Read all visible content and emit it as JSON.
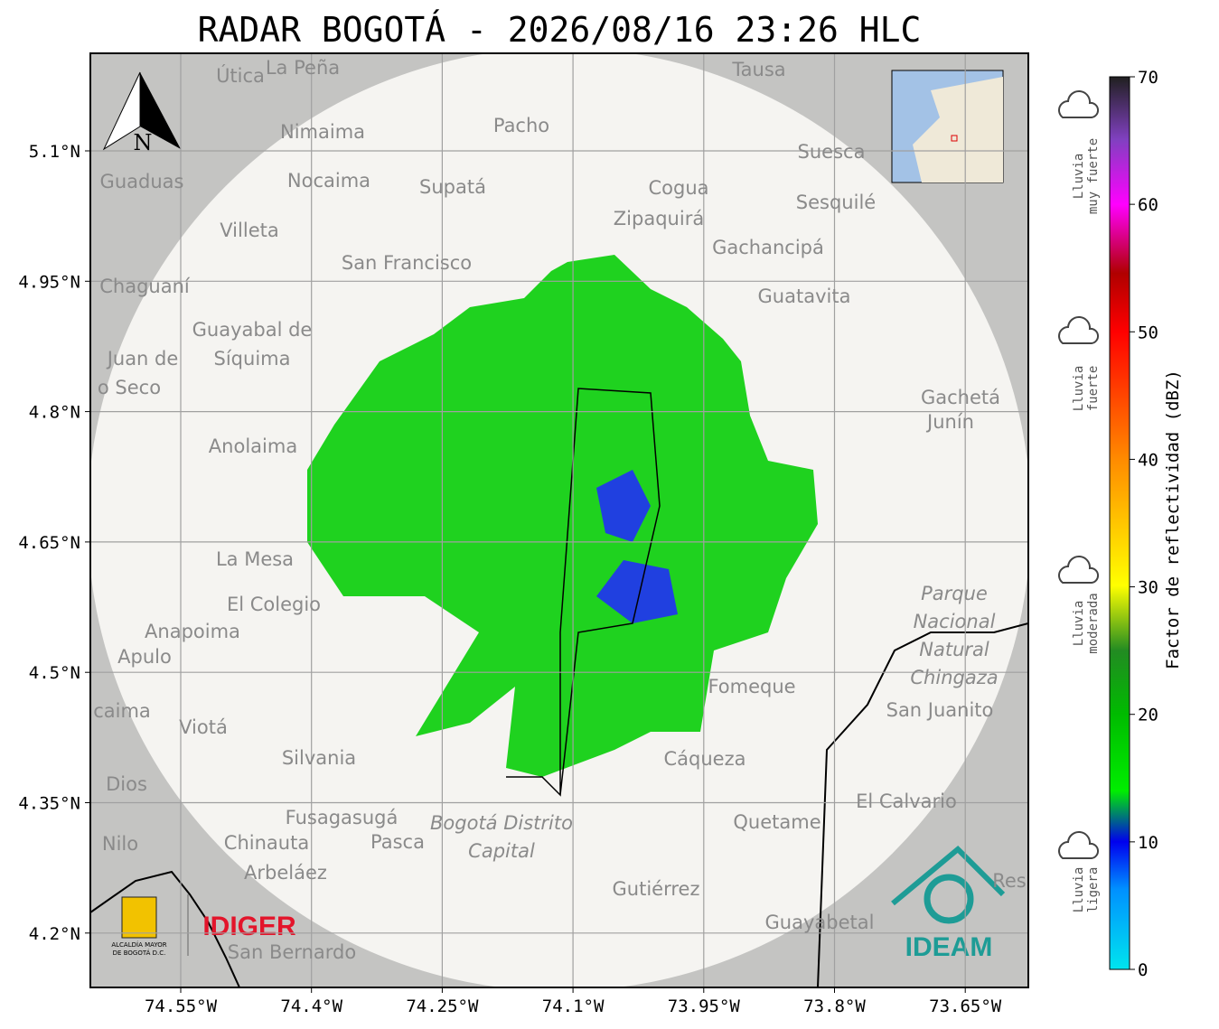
{
  "title": "RADAR BOGOTÁ - 2026/08/16 23:26 HLC",
  "lon_ticks": [
    "74.55°W",
    "74.4°W",
    "74.25°W",
    "74.1°W",
    "73.95°W",
    "73.8°W",
    "73.65°W"
  ],
  "lat_ticks": [
    "5.1°N",
    "4.95°N",
    "4.8°N",
    "4.65°N",
    "4.5°N",
    "4.35°N",
    "4.2°N"
  ],
  "north_label": "N",
  "places": [
    "Útica",
    "La Peña",
    "Tausa",
    "Pacho",
    "Nimaima",
    "Suesca",
    "Guaduas",
    "Nocaima",
    "Supatá",
    "Cogua",
    "Sesquilé",
    "Zipaquirá",
    "Villeta",
    "Gachancipá",
    "San Francisco",
    "Chaguaní",
    "Guatavita",
    "Guayabal de",
    "Síquima",
    "Juan de",
    "o Seco",
    "Gachetá",
    "Junín",
    "Anolaima",
    "La Mesa",
    "El Colegio",
    "Anapoima",
    "Apulo",
    "Fomeque",
    "San Juanito",
    "caima",
    "Viotá",
    "Silvania",
    "Cáqueza",
    "Dios",
    "El Calvario",
    "Fusagasugá",
    "Quetame",
    "Nilo",
    "Chinauta",
    "Pasca",
    "Arbeláez",
    "Gutiérrez",
    "Guayabetal",
    "San Bernardo",
    "Res"
  ],
  "park_label": [
    "Parque",
    "Nacional",
    "Natural",
    "Chingaza"
  ],
  "district_label": [
    "Bogotá Distrito",
    "Capital"
  ],
  "colorbar": {
    "label": "Factor de reflectividad (dBZ)",
    "range": [
      0,
      70
    ],
    "ticks": [
      0,
      10,
      20,
      30,
      40,
      50,
      60,
      70
    ]
  },
  "rain_legend": [
    [
      "Lluvia",
      "muy fuerte"
    ],
    [
      "Lluvia",
      "fuerte"
    ],
    [
      "Lluvia",
      "moderada"
    ],
    [
      "Lluvia",
      "ligera"
    ]
  ],
  "logos": {
    "alcaldia": [
      "ALCALDÍA MAYOR",
      "DE BOGOTÁ D.C."
    ],
    "idiger": "IDIGER",
    "ideam": "IDEAM"
  }
}
